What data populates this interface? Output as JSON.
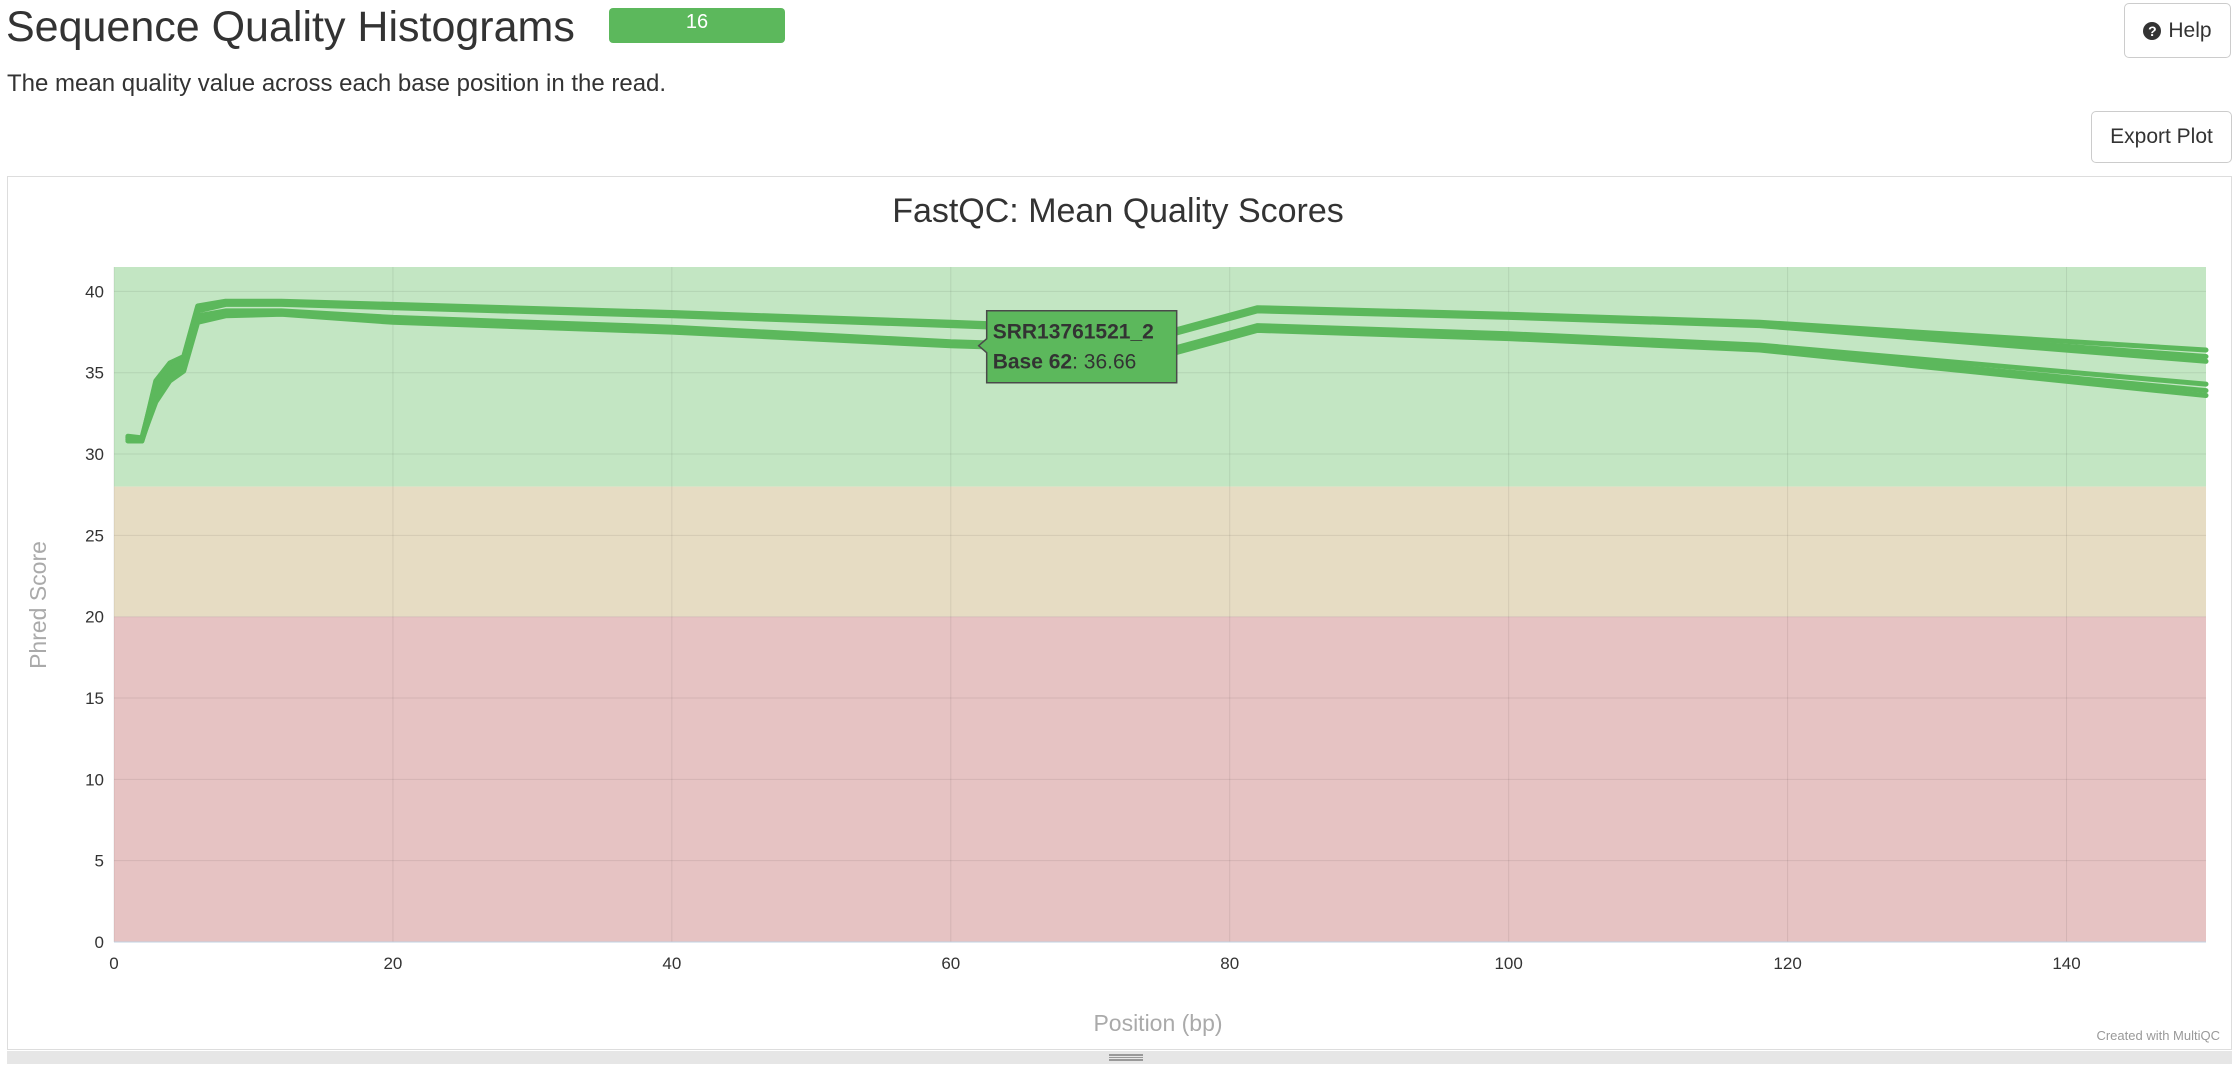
{
  "header": {
    "title": "Sequence Quality Histograms",
    "badge_count": "16",
    "help_label": "Help",
    "description": "The mean quality value across each base position in the read."
  },
  "toolbar": {
    "export_label": "Export Plot"
  },
  "credits": "Created with MultiQC",
  "colors": {
    "line": "#5cb85c",
    "band_good": "#c3e6c3",
    "band_warn": "#e6dcc3",
    "band_fail": "#e6c3c3",
    "tooltip_bg": "#5cb85c",
    "tooltip_border": "#4a4a4a"
  },
  "tooltip": {
    "sample": "SRR13761521_2",
    "base_label": "Base 62",
    "value": "36.66"
  },
  "chart_data": {
    "type": "line",
    "title": "FastQC: Mean Quality Scores",
    "xlabel": "Position (bp)",
    "ylabel": "Phred Score",
    "xlim": [
      0,
      150
    ],
    "ylim": [
      0,
      41.5
    ],
    "xticks": [
      0,
      20,
      40,
      60,
      80,
      100,
      120,
      140
    ],
    "yticks": [
      0,
      5,
      10,
      15,
      20,
      25,
      30,
      35,
      40
    ],
    "bands": [
      {
        "from": 28,
        "to": 41.5,
        "status": "good"
      },
      {
        "from": 20,
        "to": 28,
        "status": "warn"
      },
      {
        "from": 0,
        "to": 20,
        "status": "fail"
      }
    ],
    "grid": true,
    "legend": "none",
    "series": [
      {
        "x": [
          1,
          2,
          3,
          4,
          5,
          6,
          8,
          12,
          20,
          40,
          60,
          76,
          82,
          100,
          118,
          150
        ],
        "values": [
          31.0,
          30.9,
          34.5,
          35.6,
          36.0,
          39.1,
          39.4,
          39.4,
          39.2,
          38.7,
          38.1,
          37.6,
          39.0,
          38.6,
          38.1,
          36.4
        ]
      },
      {
        "x": [
          1,
          2,
          3,
          4,
          5,
          6,
          8,
          12,
          20,
          40,
          60,
          76,
          82,
          100,
          118,
          150
        ],
        "values": [
          31.1,
          31.0,
          34.3,
          35.4,
          35.9,
          39.0,
          39.3,
          39.3,
          39.1,
          38.6,
          38.0,
          37.5,
          38.9,
          38.5,
          38.0,
          36.0
        ]
      },
      {
        "x": [
          1,
          2,
          3,
          4,
          5,
          6,
          8,
          12,
          20,
          40,
          60,
          76,
          82,
          100,
          118,
          150
        ],
        "values": [
          30.9,
          30.8,
          34.0,
          35.2,
          35.7,
          38.8,
          39.2,
          39.2,
          39.0,
          38.5,
          37.9,
          37.4,
          38.8,
          38.4,
          37.9,
          35.7
        ]
      },
      {
        "x": [
          1,
          2,
          3,
          4,
          5,
          6,
          8,
          12,
          20,
          40,
          60,
          76,
          82,
          100,
          118,
          150
        ],
        "values": [
          31.0,
          30.9,
          33.7,
          34.9,
          35.5,
          38.5,
          38.8,
          38.8,
          38.4,
          37.8,
          36.9,
          36.5,
          37.9,
          37.4,
          36.7,
          34.3
        ]
      },
      {
        "x": [
          1,
          2,
          3,
          4,
          5,
          6,
          8,
          12,
          20,
          40,
          60,
          76,
          82,
          100,
          118,
          150
        ],
        "values": [
          30.8,
          30.8,
          33.4,
          34.7,
          35.3,
          38.3,
          38.7,
          38.7,
          38.2,
          37.6,
          36.7,
          36.3,
          37.7,
          37.2,
          36.5,
          33.9
        ]
      },
      {
        "x": [
          1,
          2,
          3,
          4,
          5,
          6,
          8,
          12,
          20,
          40,
          60,
          76,
          82,
          100,
          118,
          150
        ],
        "values": [
          30.9,
          30.9,
          33.2,
          34.5,
          35.1,
          38.1,
          38.5,
          38.6,
          38.1,
          37.5,
          36.66,
          36.2,
          37.6,
          37.1,
          36.4,
          33.6
        ]
      }
    ]
  }
}
